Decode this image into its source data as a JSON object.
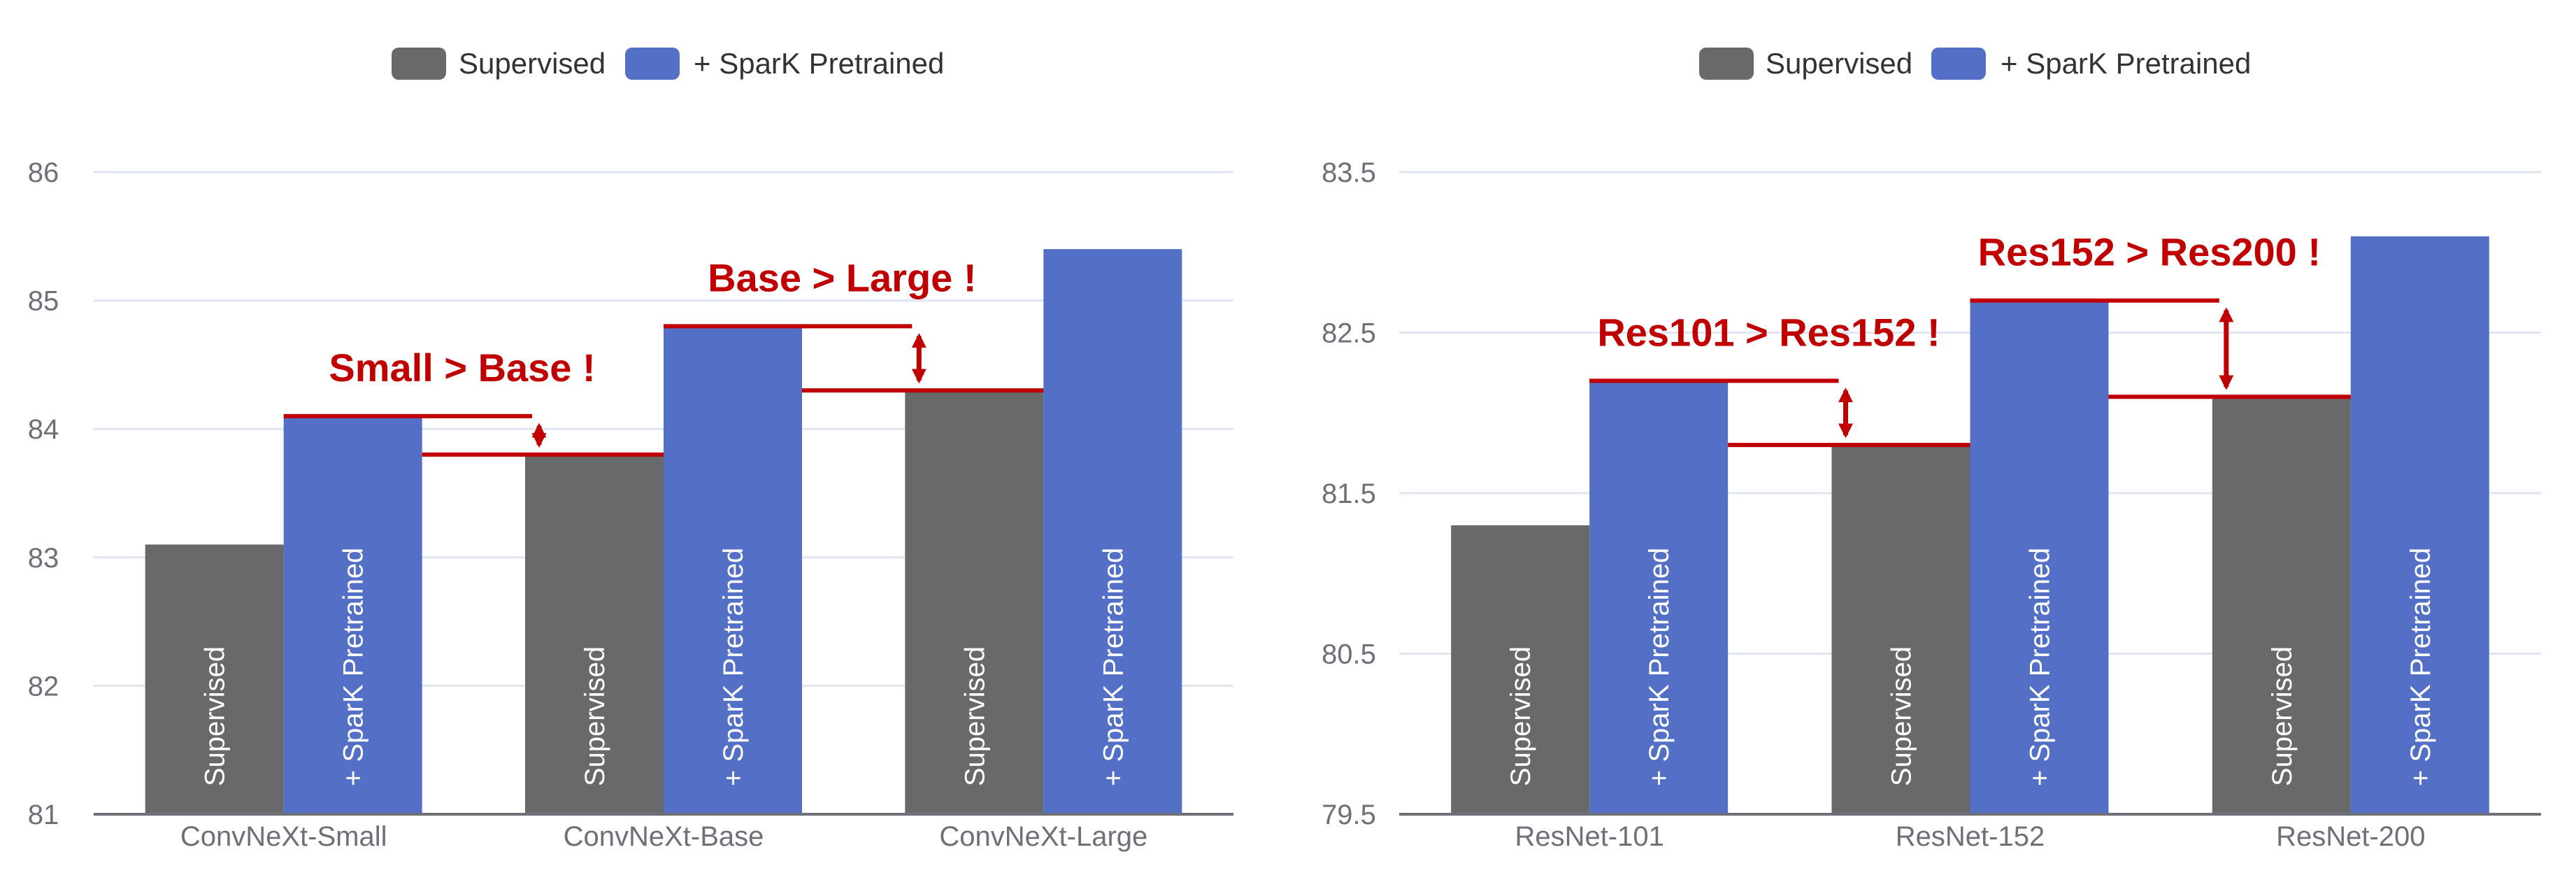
{
  "chart_data": [
    {
      "type": "bar",
      "title": "",
      "xlabel": "",
      "ylabel": "",
      "legend": {
        "position": "top-center",
        "entries": [
          "Supervised",
          "+ SparK Pretrained"
        ]
      },
      "categories": [
        "ConvNeXt-Small",
        "ConvNeXt-Base",
        "ConvNeXt-Large"
      ],
      "series": [
        {
          "name": "Supervised",
          "values": [
            83.1,
            83.8,
            84.3
          ],
          "color": "#696969",
          "bar_label": "Supervised"
        },
        {
          "name": "+ SparK Pretrained",
          "values": [
            84.1,
            84.8,
            85.4
          ],
          "color": "#5470c6",
          "bar_label": "+ SparK Pretrained"
        }
      ],
      "ylim": [
        81,
        86
      ],
      "yticks": [
        "81",
        "82",
        "83",
        "84",
        "85",
        "86"
      ],
      "ytick_values": [
        81,
        82,
        83,
        84,
        85,
        86
      ],
      "grid": true,
      "annotations": [
        {
          "text": "Small > Base !",
          "between_groups": [
            0,
            1
          ],
          "upper": 84.1,
          "lower": 83.8
        },
        {
          "text": "Base > Large !",
          "between_groups": [
            1,
            2
          ],
          "upper": 84.8,
          "lower": 84.3
        }
      ]
    },
    {
      "type": "bar",
      "title": "",
      "xlabel": "",
      "ylabel": "",
      "legend": {
        "position": "top-center",
        "entries": [
          "Supervised",
          "+ SparK Pretrained"
        ]
      },
      "categories": [
        "ResNet-101",
        "ResNet-152",
        "ResNet-200"
      ],
      "series": [
        {
          "name": "Supervised",
          "values": [
            81.3,
            81.8,
            82.1
          ],
          "color": "#696969",
          "bar_label": "Supervised"
        },
        {
          "name": "+ SparK Pretrained",
          "values": [
            82.2,
            82.7,
            83.1
          ],
          "color": "#5470c6",
          "bar_label": "+ SparK Pretrained"
        }
      ],
      "ylim": [
        79.5,
        83.5
      ],
      "yticks": [
        "79.5",
        "80.5",
        "81.5",
        "82.5",
        "83.5"
      ],
      "ytick_values": [
        79.5,
        80.5,
        81.5,
        82.5,
        83.5
      ],
      "grid": true,
      "annotations": [
        {
          "text": "Res101 > Res152 !",
          "between_groups": [
            0,
            1
          ],
          "upper": 82.2,
          "lower": 81.8
        },
        {
          "text": "Res152 > Res200 !",
          "between_groups": [
            1,
            2
          ],
          "upper": 82.7,
          "lower": 82.1
        }
      ]
    }
  ],
  "annotation_color": "#c00000"
}
